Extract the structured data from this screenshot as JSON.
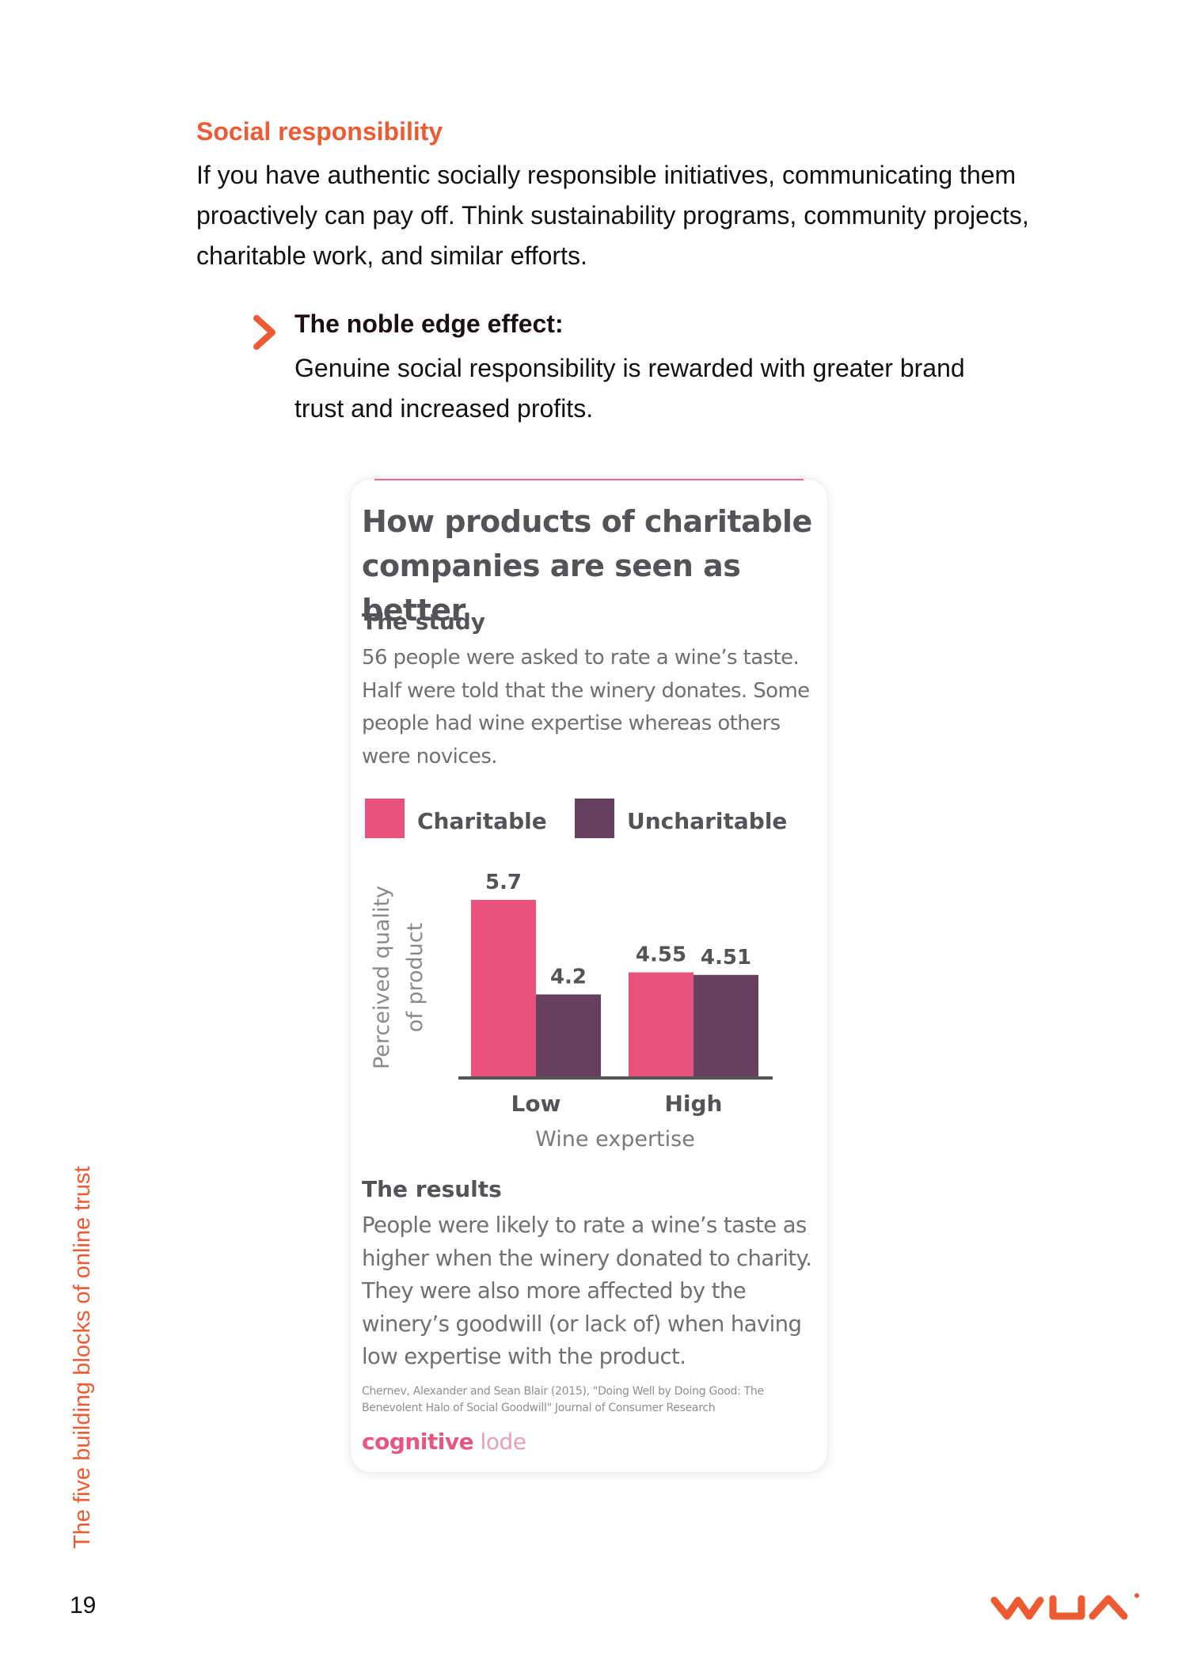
{
  "section": {
    "heading": "Social responsibility",
    "intro": "If you have authentic socially responsible initiatives, communicating them proactively can pay off. Think sustainability programs, community projects, charitable work, and similar efforts."
  },
  "callout": {
    "icon": "chevron-right-icon",
    "title": "The noble edge effect:",
    "body": "Genuine social responsibility is rewarded with greater brand trust and increased profits."
  },
  "infographic": {
    "title": "How products of charitable companies are seen as better",
    "study_heading": "The study",
    "study_text": "56 people were asked to rate a wine’s taste. Half were told that the winery donates. Some people had wine expertise whereas others were novices.",
    "results_heading": "The results",
    "results_text": "People were likely to rate a wine’s taste as higher when the winery donated to charity. They were also more affected by the winery’s goodwill (or lack of) when having low expertise with the product.",
    "citation": "Chernev, Alexander and Sean Blair (2015), \"Doing Well by Doing Good: The Benevolent Halo of Social Goodwill\" Journal of Consumer Research",
    "brand_part1": "cognitive",
    "brand_part2": "lode"
  },
  "chart_data": {
    "type": "bar",
    "categories": [
      "Low",
      "High"
    ],
    "series": [
      {
        "name": "Charitable",
        "values": [
          5.7,
          4.55
        ],
        "color": "#e8527d"
      },
      {
        "name": "Uncharitable",
        "values": [
          4.2,
          4.51
        ],
        "color": "#67405f"
      }
    ],
    "value_labels": [
      [
        "5.7",
        "4.55"
      ],
      [
        "4.2",
        "4.51"
      ]
    ],
    "xlabel": "Wine expertise",
    "ylabel_lines": [
      "Perceived quality",
      "of product"
    ],
    "ylim": [
      2.9,
      5.7
    ],
    "legend": "top",
    "grid": false
  },
  "footer": {
    "side_label": "The five building blocks of online trust",
    "page_number": "19",
    "logo": "wua-logo",
    "accent": "#ee5a32"
  }
}
